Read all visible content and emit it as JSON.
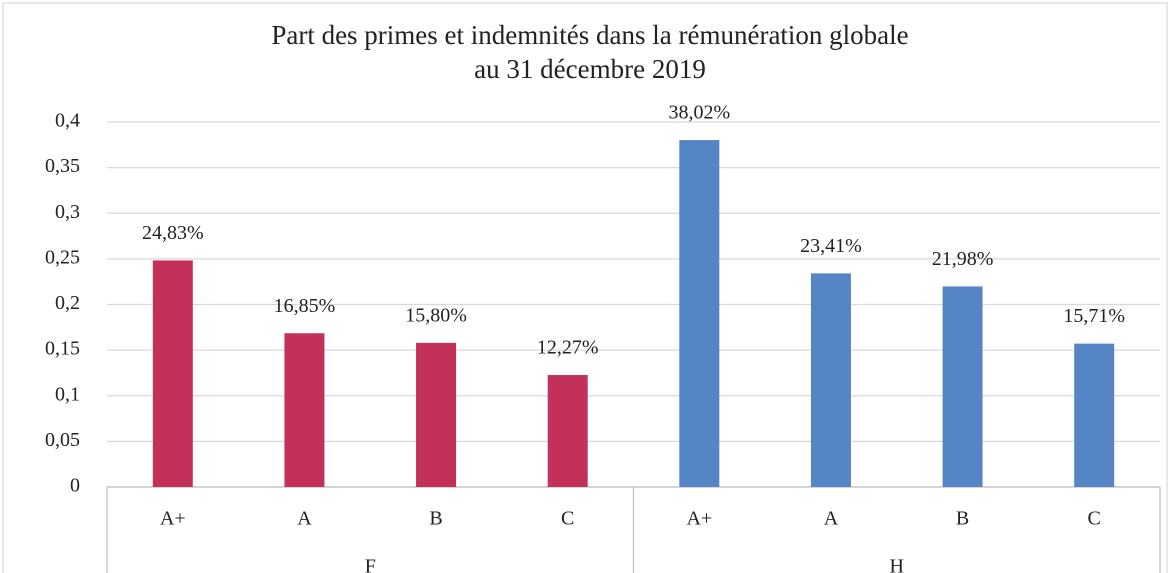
{
  "chart_data": {
    "type": "bar",
    "title": "Part des primes et indemnités dans la rémunération globale",
    "subtitle": "au 31 décembre 2019",
    "categories": [
      "A+",
      "A",
      "B",
      "C"
    ],
    "series": [
      {
        "name": "F",
        "color": "#c3305a",
        "values": [
          0.2483,
          0.1685,
          0.158,
          0.1227
        ],
        "value_labels": [
          "24,83%",
          "16,85%",
          "15,80%",
          "12,27%"
        ]
      },
      {
        "name": "H",
        "color": "#5585c5",
        "values": [
          0.3802,
          0.2341,
          0.2198,
          0.1571
        ],
        "value_labels": [
          "38,02%",
          "23,41%",
          "21,98%",
          "15,71%"
        ]
      }
    ],
    "ylim": [
      0,
      0.4
    ],
    "yticks": [
      0,
      {
        "value": 0.05,
        "label": "0,05"
      },
      {
        "value": 0.1,
        "label": "0,1"
      },
      {
        "value": 0.15,
        "label": "0,15"
      },
      {
        "value": 0.2,
        "label": "0,2"
      },
      {
        "value": 0.25,
        "label": "0,25"
      },
      {
        "value": 0.3,
        "label": "0,3"
      },
      {
        "value": 0.35,
        "label": "0,35"
      },
      {
        "value": 0.4,
        "label": "0,4"
      }
    ],
    "grid": true
  }
}
